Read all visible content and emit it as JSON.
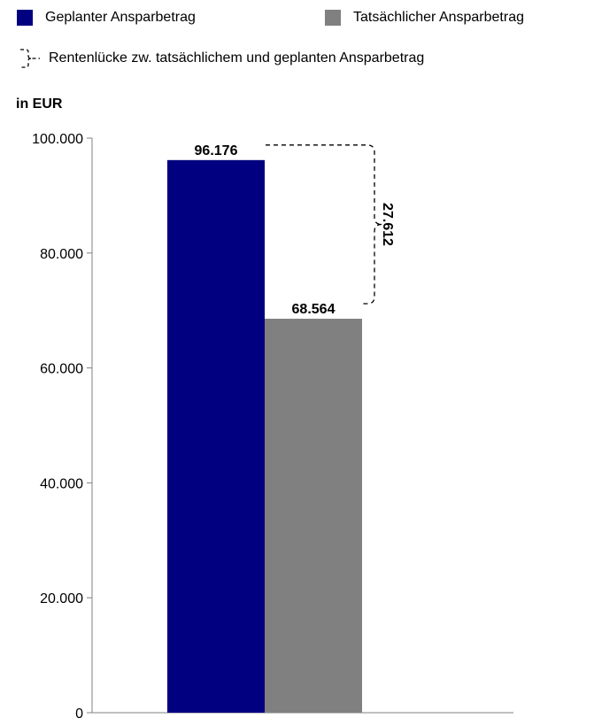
{
  "legend": {
    "planned": "Geplanter Ansparbetrag",
    "actual": "Tatsächlicher Ansparbetrag",
    "gap": "Rentenlücke zw. tatsächlichem und geplanten Ansparbetrag"
  },
  "colors": {
    "planned": "#000080",
    "actual": "#808080",
    "axis": "#808080"
  },
  "chart_data": {
    "type": "bar",
    "ylabel": "in EUR",
    "ylim": [
      0,
      100000
    ],
    "yticks": [
      0,
      20000,
      40000,
      60000,
      80000,
      100000
    ],
    "ytick_labels": [
      "0",
      "20.000",
      "40.000",
      "60.000",
      "80.000",
      "100.000"
    ],
    "series": [
      {
        "name": "Geplanter Ansparbetrag",
        "values": [
          96176
        ],
        "label": "96.176"
      },
      {
        "name": "Tatsächlicher Ansparbetrag",
        "values": [
          68564
        ],
        "label": "68.564"
      }
    ],
    "gap": {
      "value": 27612,
      "label": "27.612"
    },
    "grid": false,
    "legend_position": "top"
  }
}
